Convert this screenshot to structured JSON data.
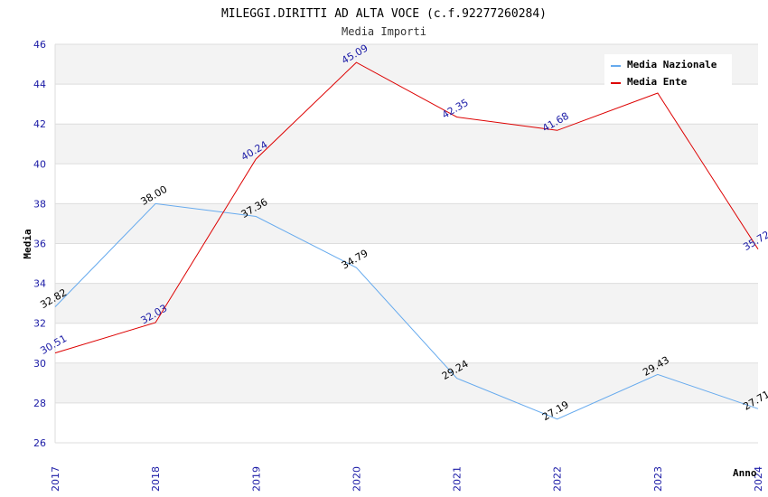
{
  "chart_data": {
    "type": "line",
    "title": "MILEGGI.DIRITTI AD ALTA VOCE (c.f.92277260284)",
    "subtitle": "Media Importi",
    "xlabel": "Anno",
    "ylabel": "Media",
    "x": [
      "2017",
      "2018",
      "2019",
      "2020",
      "2021",
      "2022",
      "2023",
      "2024"
    ],
    "ylim": [
      26,
      46
    ],
    "yticks": [
      26,
      28,
      30,
      32,
      34,
      36,
      38,
      40,
      42,
      44,
      46
    ],
    "grid": true,
    "legend_position": "top-right",
    "series": [
      {
        "name": "Media Nazionale",
        "color": "#66aaee",
        "label_color": "#000000",
        "values": [
          32.82,
          38.0,
          37.36,
          34.79,
          29.24,
          27.19,
          29.43,
          27.71
        ],
        "labels": [
          "32.82",
          "38.00",
          "37.36",
          "34.79",
          "29.24",
          "27.19",
          "29.43",
          "27.71"
        ]
      },
      {
        "name": "Media Ente",
        "color": "#dd0000",
        "label_color": "#1a1aa6",
        "values": [
          30.51,
          32.03,
          40.24,
          45.09,
          42.35,
          41.68,
          43.55,
          35.72
        ],
        "labels": [
          "30.51",
          "32.03",
          "40.24",
          "45.09",
          "42.35",
          "41.68",
          "",
          "35.72"
        ]
      }
    ]
  }
}
